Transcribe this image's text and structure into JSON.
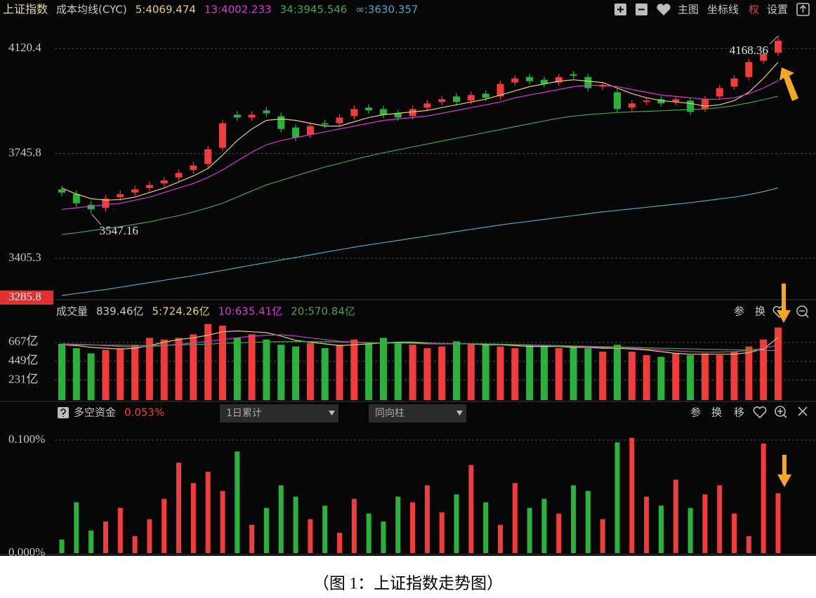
{
  "toolbar": [
    "主图",
    "坐标线",
    "权",
    "设置"
  ],
  "caption": "（图 1：上证指数走势图）",
  "chart_data": [
    {
      "type": "candlestick",
      "title": "上证指数",
      "subtitle": "成本均线(CYC)",
      "log": true,
      "grid": true,
      "up_color": "#f23b3b",
      "down_color": "#2bb23c",
      "ylim": [
        3285.8,
        4230
      ],
      "yticks": [
        4120.4,
        3745.8,
        3405.3,
        3285.8
      ],
      "open": [
        3625,
        3610,
        3575,
        3565,
        3600,
        3615,
        3630,
        3645,
        3665,
        3690,
        3710,
        3765,
        3880,
        3870,
        3895,
        3875,
        3835,
        3810,
        3850,
        3850,
        3875,
        3905,
        3900,
        3885,
        3875,
        3905,
        3925,
        3945,
        3930,
        3955,
        3945,
        3995,
        4015,
        4005,
        3995,
        4025,
        4015,
        3980,
        3960,
        3905,
        3925,
        3935,
        3925,
        3930,
        3900,
        3945,
        3980,
        4015,
        4075,
        4105
      ],
      "high": [
        3637,
        3622,
        3587,
        3607,
        3622,
        3637,
        3652,
        3667,
        3692,
        3717,
        3772,
        3862,
        3892,
        3892,
        3907,
        3887,
        3847,
        3852,
        3862,
        3882,
        3912,
        3917,
        3912,
        3897,
        3912,
        3932,
        3947,
        3957,
        3962,
        3967,
        4002,
        4022,
        4027,
        4017,
        4027,
        4037,
        4027,
        3997,
        3972,
        3932,
        3942,
        3947,
        3947,
        3942,
        3947,
        3987,
        4022,
        4082,
        4112,
        4168.36
      ],
      "low": [
        3603,
        3568,
        3547.16,
        3553,
        3588,
        3603,
        3618,
        3633,
        3653,
        3678,
        3698,
        3753,
        3858,
        3858,
        3873,
        3818,
        3788,
        3798,
        3833,
        3838,
        3863,
        3883,
        3868,
        3858,
        3863,
        3893,
        3913,
        3913,
        3918,
        3928,
        3933,
        3983,
        3988,
        3978,
        3983,
        4008,
        3963,
        3968,
        3888,
        3893,
        3913,
        3908,
        3913,
        3878,
        3888,
        3933,
        3968,
        4003,
        4063,
        4093
      ],
      "close": [
        3615,
        3580,
        3560,
        3595,
        3610,
        3625,
        3640,
        3655,
        3680,
        3705,
        3760,
        3850,
        3870,
        3880,
        3885,
        3830,
        3800,
        3840,
        3845,
        3870,
        3900,
        3895,
        3880,
        3870,
        3900,
        3920,
        3935,
        3925,
        3950,
        3940,
        3990,
        4010,
        4000,
        3990,
        4015,
        4020,
        3975,
        3985,
        3900,
        3920,
        3930,
        3920,
        3935,
        3890,
        3935,
        3975,
        4010,
        4070,
        4100,
        4150
      ],
      "series": [
        {
          "name": "5:4069.474",
          "color": "#e6cf72",
          "values": [
            3630,
            3610,
            3595,
            3590,
            3592,
            3600,
            3615,
            3630,
            3650,
            3670,
            3695,
            3740,
            3790,
            3830,
            3860,
            3865,
            3860,
            3850,
            3840,
            3840,
            3855,
            3870,
            3880,
            3885,
            3890,
            3895,
            3905,
            3915,
            3925,
            3935,
            3950,
            3965,
            3980,
            3990,
            4000,
            4005,
            4000,
            3995,
            3975,
            3955,
            3940,
            3930,
            3925,
            3920,
            3910,
            3915,
            3930,
            3960,
            4010,
            4069.474
          ]
        },
        {
          "name": "13:4002.233",
          "color": "#d43ad4",
          "values": [
            3560,
            3565,
            3570,
            3575,
            3580,
            3590,
            3600,
            3615,
            3630,
            3645,
            3665,
            3690,
            3720,
            3750,
            3775,
            3790,
            3800,
            3810,
            3820,
            3830,
            3840,
            3850,
            3860,
            3865,
            3870,
            3875,
            3885,
            3895,
            3905,
            3915,
            3925,
            3940,
            3950,
            3960,
            3970,
            3980,
            3985,
            3985,
            3980,
            3970,
            3960,
            3950,
            3945,
            3940,
            3935,
            3935,
            3940,
            3955,
            3975,
            4002.233
          ]
        },
        {
          "name": "34:3945.546",
          "color": "#3ea83e",
          "values": [
            3480,
            3485,
            3492,
            3498,
            3505,
            3512,
            3520,
            3530,
            3540,
            3552,
            3565,
            3580,
            3600,
            3620,
            3640,
            3655,
            3670,
            3685,
            3700,
            3712,
            3725,
            3737,
            3748,
            3758,
            3768,
            3778,
            3788,
            3798,
            3808,
            3818,
            3828,
            3838,
            3848,
            3858,
            3868,
            3875,
            3880,
            3884,
            3888,
            3890,
            3892,
            3894,
            3896,
            3898,
            3900,
            3905,
            3912,
            3922,
            3933,
            3945.546
          ]
        },
        {
          "name": "∞:3630.357",
          "color": "#4aa8c4",
          "values": [
            3292,
            3298,
            3304,
            3310,
            3317,
            3324,
            3331,
            3338,
            3345,
            3352,
            3360,
            3368,
            3376,
            3384,
            3392,
            3400,
            3408,
            3416,
            3424,
            3432,
            3440,
            3447,
            3454,
            3461,
            3468,
            3475,
            3482,
            3489,
            3496,
            3503,
            3510,
            3516,
            3522,
            3528,
            3534,
            3540,
            3546,
            3552,
            3557,
            3562,
            3567,
            3572,
            3577,
            3582,
            3588,
            3594,
            3600,
            3608,
            3618,
            3630.357
          ]
        }
      ]
    },
    {
      "type": "bar",
      "title": "成交量",
      "current": "839.46亿",
      "tools": [
        "参",
        "换"
      ],
      "grid": true,
      "ylim": [
        0,
        893
      ],
      "yticks": [
        {
          "value": 667,
          "label": "667亿"
        },
        {
          "value": 449,
          "label": "449亿"
        },
        {
          "value": 231,
          "label": "231亿"
        }
      ],
      "values": [
        650,
        600,
        540,
        580,
        600,
        640,
        720,
        700,
        720,
        760,
        880,
        860,
        720,
        760,
        700,
        640,
        620,
        660,
        600,
        640,
        700,
        650,
        720,
        660,
        640,
        600,
        620,
        680,
        650,
        640,
        620,
        600,
        640,
        620,
        600,
        620,
        600,
        560,
        640,
        560,
        520,
        500,
        540,
        520,
        540,
        520,
        560,
        620,
        700,
        839.46
      ],
      "series": [
        {
          "name": "5:724.26亿",
          "color": "#e6cf72",
          "values": [
            640,
            630,
            610,
            600,
            590,
            600,
            630,
            670,
            700,
            720,
            750,
            790,
            800,
            790,
            780,
            740,
            690,
            670,
            650,
            630,
            640,
            650,
            660,
            670,
            670,
            660,
            650,
            650,
            650,
            640,
            640,
            630,
            620,
            620,
            620,
            610,
            610,
            600,
            600,
            590,
            580,
            560,
            540,
            530,
            530,
            530,
            530,
            550,
            590,
            724.26
          ]
        },
        {
          "name": "10:635.41亿",
          "color": "#d43ad4",
          "values": [
            650,
            645,
            640,
            630,
            620,
            615,
            620,
            630,
            645,
            660,
            680,
            700,
            720,
            740,
            750,
            755,
            740,
            720,
            700,
            680,
            670,
            660,
            655,
            660,
            655,
            650,
            650,
            650,
            650,
            650,
            645,
            640,
            635,
            630,
            625,
            620,
            615,
            610,
            605,
            600,
            590,
            580,
            570,
            560,
            555,
            555,
            560,
            575,
            600,
            635.41
          ]
        },
        {
          "name": "20:570.84亿",
          "color": "#3ea83e",
          "values": [
            640,
            640,
            638,
            636,
            634,
            632,
            632,
            634,
            638,
            642,
            648,
            655,
            662,
            668,
            672,
            675,
            676,
            676,
            675,
            672,
            668,
            665,
            662,
            660,
            658,
            656,
            654,
            652,
            650,
            648,
            645,
            642,
            638,
            634,
            630,
            626,
            622,
            618,
            614,
            610,
            605,
            600,
            596,
            592,
            588,
            585,
            582,
            578,
            575,
            570.84
          ]
        }
      ]
    },
    {
      "type": "bar",
      "title": "多空资金",
      "current": "0.053%",
      "dropdowns": [
        "1日累计",
        "同向柱"
      ],
      "tools": [
        "参",
        "换",
        "移"
      ],
      "grid": true,
      "ylim": [
        0,
        0.1137
      ],
      "yticks": [
        {
          "value": 0.1,
          "label": "0.100%"
        },
        {
          "value": 0,
          "label": "0.000%"
        }
      ],
      "values": [
        0.012,
        0.045,
        0.02,
        0.028,
        0.04,
        0.015,
        0.03,
        0.048,
        0.08,
        0.062,
        0.072,
        0.055,
        0.09,
        0.025,
        0.04,
        0.06,
        0.05,
        0.03,
        0.042,
        0.018,
        0.048,
        0.035,
        0.028,
        0.05,
        0.045,
        0.06,
        0.036,
        0.052,
        0.078,
        0.045,
        0.025,
        0.062,
        0.04,
        0.048,
        0.035,
        0.06,
        0.055,
        0.03,
        0.098,
        0.102,
        0.05,
        0.042,
        0.065,
        0.04,
        0.052,
        0.06,
        0.035,
        0.015,
        0.097,
        0.053
      ]
    }
  ]
}
